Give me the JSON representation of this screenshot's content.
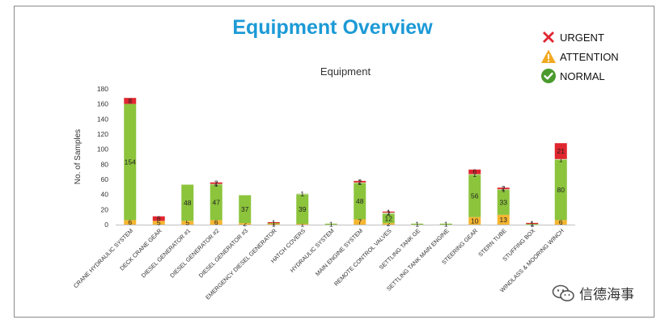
{
  "header": {
    "title": "Equipment Overview"
  },
  "legend": {
    "items": [
      {
        "label": "URGENT",
        "icon": "x-icon",
        "color": "#e02733"
      },
      {
        "label": "ATTENTION",
        "icon": "warning-triangle-icon",
        "color": "#f2a922"
      },
      {
        "label": "NORMAL",
        "icon": "check-circle-icon",
        "color": "#4a9a2e"
      }
    ]
  },
  "watermark": {
    "text": "信德海事",
    "icon": "wechat-icon"
  },
  "chart_data": {
    "type": "bar",
    "stacked": true,
    "title": "Equipment",
    "xlabel": "",
    "ylabel": "No. of Samples",
    "ylim": [
      0,
      180
    ],
    "yticks": [
      0,
      20,
      40,
      60,
      80,
      100,
      120,
      140,
      160,
      180
    ],
    "grid": false,
    "categories": [
      "CRANE HYDRAULIC SYSTEM",
      "DECK CRANE GEAR",
      "DIESEL GENERATOR #1",
      "DIESEL GENERATOR #2",
      "DIESEL GENERATOR #3",
      "EMERGENCY DIESEL GENERATOR",
      "HATCH COVERS",
      "HYDRAULIC SYSTEM",
      "MAIN ENGINE SYSTEM",
      "REMOTE CONTROL VALVES",
      "SETTLING TANK GE",
      "SETTLING TANK MAIN ENGINE",
      "STEERING GEAR",
      "STERN TUBE",
      "STUFFING BOX",
      "WINDLASS & MOORING WINCH"
    ],
    "series": [
      {
        "name": "ATTENTION",
        "color": "#f5b631",
        "values": [
          6,
          5,
          5,
          6,
          2,
          1,
          1,
          0,
          7,
          2,
          0,
          0,
          10,
          13,
          0,
          6
        ]
      },
      {
        "name": "NORMAL",
        "color": "#8cc43c",
        "values": [
          154,
          0,
          48,
          47,
          37,
          1,
          39,
          1,
          48,
          12,
          1,
          1,
          56,
          33,
          1,
          80
        ]
      },
      {
        "name": "",
        "color": "#c8d9a8",
        "values": [
          0,
          0,
          0,
          1,
          0,
          0,
          1,
          0,
          1,
          2,
          0,
          0,
          1,
          1,
          0,
          1
        ]
      },
      {
        "name": "URGENT",
        "color": "#e0262f",
        "values": [
          8,
          6,
          0,
          2,
          0,
          1,
          0,
          0,
          2,
          1,
          0,
          0,
          6,
          2,
          1,
          21
        ]
      }
    ],
    "data_labels": [
      [
        "6",
        "154",
        "",
        "8"
      ],
      [
        "5",
        "",
        "",
        "6"
      ],
      [
        "5",
        "48",
        "",
        ""
      ],
      [
        "6",
        "47",
        "1",
        "2"
      ],
      [
        "2",
        "37",
        "",
        ""
      ],
      [
        "1",
        "",
        "",
        "1"
      ],
      [
        "1",
        "39",
        "1",
        ""
      ],
      [
        "",
        "1",
        "",
        ""
      ],
      [
        "7",
        "48",
        "1",
        "2"
      ],
      [
        "2",
        "12",
        "2",
        "1"
      ],
      [
        "",
        "1",
        "",
        ""
      ],
      [
        "",
        "1",
        "",
        ""
      ],
      [
        "10",
        "56",
        "1",
        "6"
      ],
      [
        "13",
        "33",
        "1",
        "2"
      ],
      [
        "",
        "1",
        "",
        "1"
      ],
      [
        "6",
        "80",
        "1",
        "21"
      ]
    ]
  }
}
